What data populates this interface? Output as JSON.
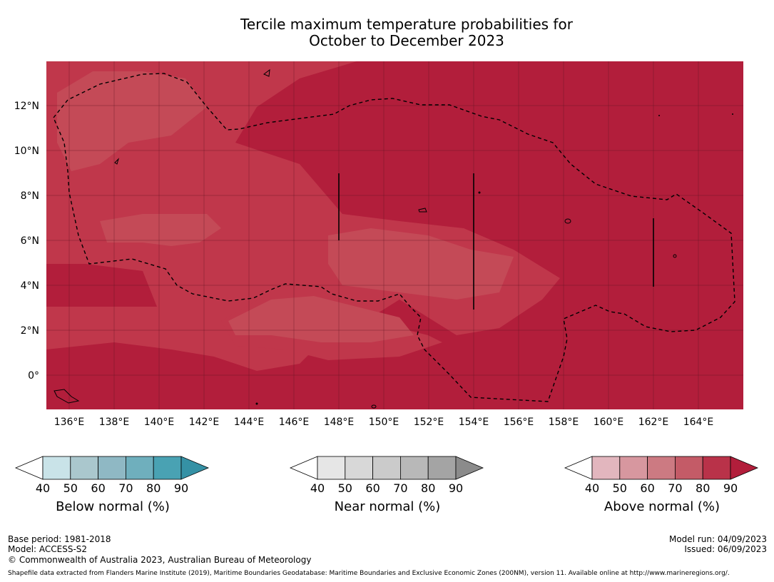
{
  "title": {
    "line1": "Tercile maximum temperature probabilities for",
    "line2": "October to December 2023"
  },
  "map": {
    "base_color": "#b21e3b",
    "lon_ticks": [
      "136°E",
      "138°E",
      "140°E",
      "142°E",
      "144°E",
      "146°E",
      "148°E",
      "150°E",
      "152°E",
      "154°E",
      "156°E",
      "158°E",
      "160°E",
      "162°E",
      "164°E"
    ],
    "lat_ticks": [
      "12°N",
      "10°N",
      "8°N",
      "6°N",
      "4°N",
      "2°N",
      "0°"
    ],
    "lon_range": [
      135,
      166
    ],
    "lat_range": [
      -1.5,
      14
    ]
  },
  "colorbars": [
    {
      "label": "Below normal (%)",
      "ticks": [
        "40",
        "50",
        "60",
        "70",
        "80",
        "90"
      ],
      "colors": [
        "#c9e3e8",
        "#aac7cd",
        "#8fb8c4",
        "#6fafbd",
        "#49a2b3",
        "#3591a5"
      ]
    },
    {
      "label": "Near normal (%)",
      "ticks": [
        "40",
        "50",
        "60",
        "70",
        "80",
        "90"
      ],
      "colors": [
        "#e6e6e6",
        "#d8d8d8",
        "#cbcbcb",
        "#b8b8b8",
        "#a4a4a4",
        "#8b8b8b"
      ]
    },
    {
      "label": "Above normal (%)",
      "ticks": [
        "40",
        "50",
        "60",
        "70",
        "80",
        "90"
      ],
      "colors": [
        "#e2b6be",
        "#d7979f",
        "#cc7a82",
        "#c45b67",
        "#b93249",
        "#b21e3b"
      ]
    }
  ],
  "footer": {
    "base_period": "Base period: 1981-2018",
    "model": "Model: ACCESS-S2",
    "copyright": "© Commonwealth of Australia 2023, Australian Bureau of Meteorology",
    "model_run": "Model run: 04/09/2023",
    "issued": "Issued: 06/09/2023",
    "shapefile": "Shapefile data extracted from Flanders Marine Institute (2019), Maritime Boundaries Geodatabase: Maritime Boundaries and Exclusive Economic Zones (200NM), version 11. Available online at http://www.marineregions.org/."
  }
}
